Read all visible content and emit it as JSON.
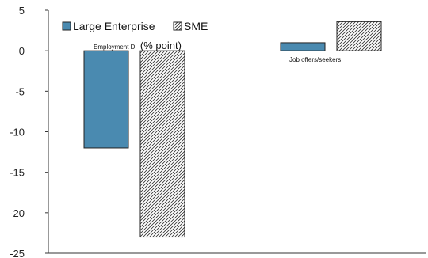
{
  "chart_data": {
    "type": "bar",
    "categories": [
      "Employment DI",
      "Job offers/seekers"
    ],
    "category_label_suffix": "(% point)",
    "series": [
      {
        "name": "Large Enterprise",
        "values": [
          -12,
          1
        ],
        "color": "#4a8ab0",
        "pattern": "solid"
      },
      {
        "name": "SME",
        "values": [
          -23,
          3.6
        ],
        "color": "#ffffff",
        "pattern": "diagonal-hatch"
      }
    ],
    "title": "",
    "xlabel": "",
    "ylabel": "",
    "ylim": [
      -25,
      5
    ],
    "yticks": [
      5,
      0,
      -5,
      -10,
      -15,
      -20,
      -25
    ],
    "grid": false,
    "legend_position": "top-left"
  }
}
